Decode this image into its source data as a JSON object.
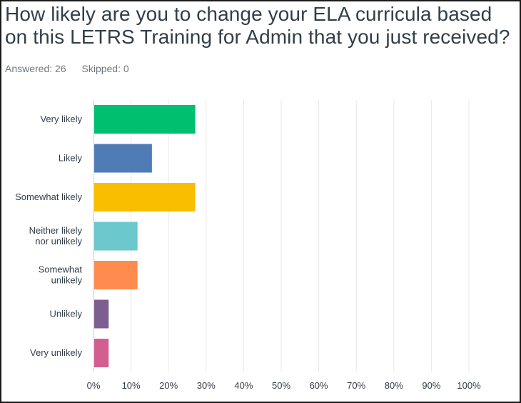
{
  "question": "How likely are you to change your ELA curricula based on this LETRS Training for Admin that you just received?",
  "stats": {
    "answered": "Answered: 26",
    "skipped": "Skipped: 0"
  },
  "chart_data": {
    "type": "bar",
    "orientation": "horizontal",
    "categories": [
      [
        "Very likely"
      ],
      [
        "Likely"
      ],
      [
        "Somewhat likely"
      ],
      [
        "Neither likely",
        "nor unlikely"
      ],
      [
        "Somewhat",
        "unlikely"
      ],
      [
        "Unlikely"
      ],
      [
        "Very unlikely"
      ]
    ],
    "values": [
      26.92,
      15.38,
      26.92,
      11.54,
      11.54,
      3.85,
      3.85
    ],
    "colors": [
      "#00bf6f",
      "#507cb6",
      "#f9be00",
      "#6bc8cd",
      "#ff8b4f",
      "#7d5e90",
      "#d25f90"
    ],
    "xlim": [
      0,
      100
    ],
    "xticks": [
      "0%",
      "10%",
      "20%",
      "30%",
      "40%",
      "50%",
      "60%",
      "70%",
      "80%",
      "90%",
      "100%"
    ],
    "grid": true
  }
}
